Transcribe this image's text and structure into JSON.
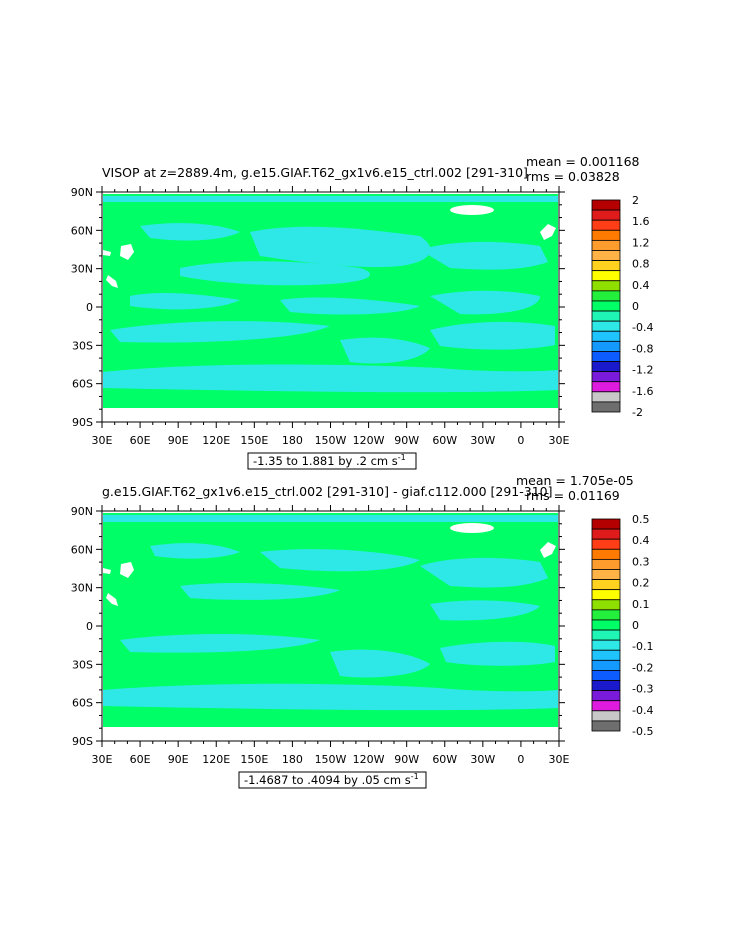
{
  "chart_data": [
    {
      "type": "heatmap",
      "title": "VISOP at z=2889.4m, g.e15.GIAF.T62_gx1v6.e15_ctrl.002 [291-310]",
      "stats": {
        "mean": "mean = 0.001168",
        "rms": "rms = 0.03828"
      },
      "y_ticks": [
        "90N",
        "60N",
        "30N",
        "0",
        "30S",
        "60S",
        "90S"
      ],
      "x_ticks": [
        "30E",
        "60E",
        "90E",
        "120E",
        "150E",
        "180",
        "150W",
        "120W",
        "90W",
        "60W",
        "30W",
        "0",
        "30E"
      ],
      "range_label": "-1.35 to 1.881 by .2 cm s",
      "range_unit_exp": "-1",
      "colorbar": {
        "labels": [
          "2",
          "1.6",
          "1.2",
          "0.8",
          "0.4",
          "0",
          "-0.4",
          "-0.8",
          "-1.2",
          "-1.6",
          "-2"
        ],
        "colors": [
          "#b40000",
          "#e01b1b",
          "#ff3d17",
          "#ff7a00",
          "#ff9c2e",
          "#ffb347",
          "#ffd21f",
          "#ffff00",
          "#8fe000",
          "#22f03c",
          "#00ff66",
          "#1ff5b4",
          "#2ee8e8",
          "#1fc4ff",
          "#1499ff",
          "#0d5cff",
          "#1a1acc",
          "#7a1adb",
          "#e01be0",
          "#c8c8c8",
          "#6e6e6e"
        ]
      }
    },
    {
      "type": "heatmap",
      "title": "g.e15.GIAF.T62_gx1v6.e15_ctrl.002 [291-310] - giaf.c112.000 [291-310]",
      "stats": {
        "mean": "mean = 1.705e-05",
        "rms": "rms = 0.01169"
      },
      "y_ticks": [
        "90N",
        "60N",
        "30N",
        "0",
        "30S",
        "60S",
        "90S"
      ],
      "x_ticks": [
        "30E",
        "60E",
        "90E",
        "120E",
        "150E",
        "180",
        "150W",
        "120W",
        "90W",
        "60W",
        "30W",
        "0",
        "30E"
      ],
      "range_label": "-1.4687 to .4094 by .05 cm s",
      "range_unit_exp": "-1",
      "colorbar": {
        "labels": [
          "0.5",
          "0.4",
          "0.3",
          "0.2",
          "0.1",
          "0",
          "-0.1",
          "-0.2",
          "-0.3",
          "-0.4",
          "-0.5"
        ],
        "colors": [
          "#b40000",
          "#e01b1b",
          "#ff3d17",
          "#ff7a00",
          "#ff9c2e",
          "#ffb347",
          "#ffd21f",
          "#ffff00",
          "#8fe000",
          "#22f03c",
          "#00ff66",
          "#1ff5b4",
          "#2ee8e8",
          "#1fc4ff",
          "#1499ff",
          "#0d5cff",
          "#1a1acc",
          "#7a1adb",
          "#e01be0",
          "#c8c8c8",
          "#6e6e6e"
        ]
      }
    }
  ]
}
